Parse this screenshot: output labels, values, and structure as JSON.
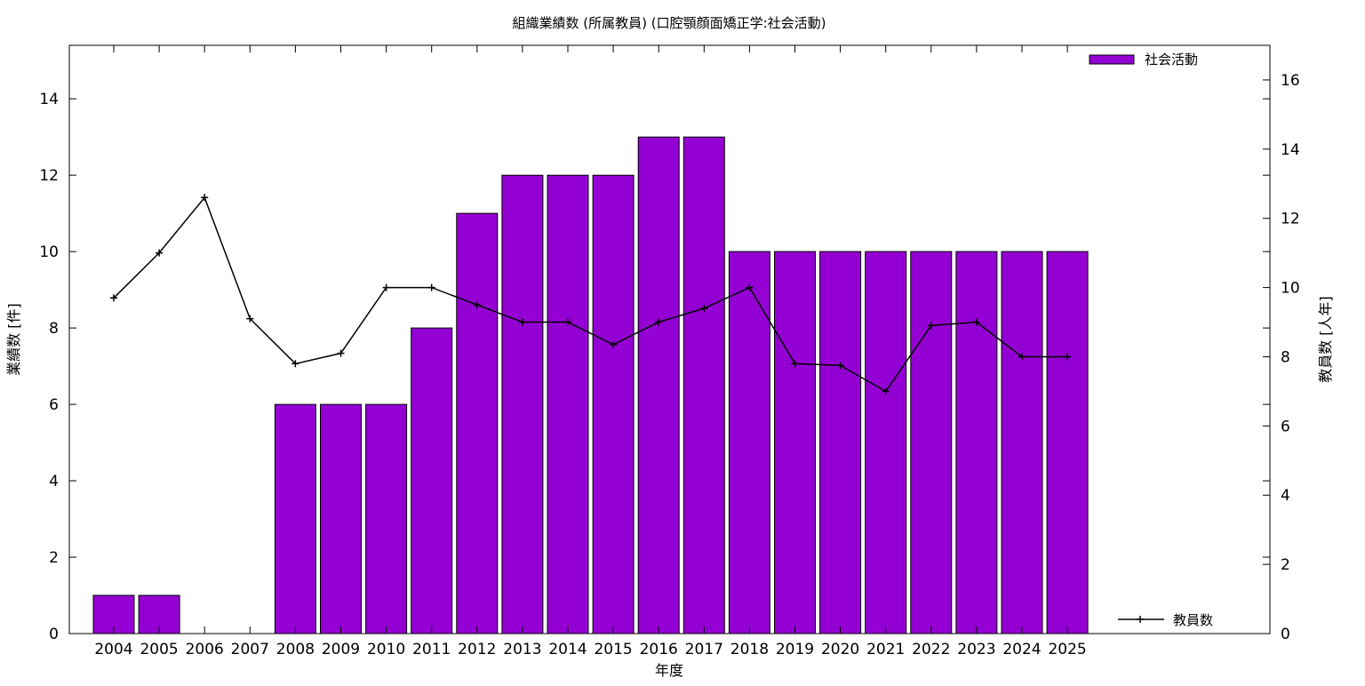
{
  "chart_data": {
    "type": "bar",
    "title": "組織業績数 (所属教員) (口腔顎顔面矯正学:社会活動)",
    "xlabel": "年度",
    "ylabel": "業績数 [件]",
    "y2label": "教員数 [人年]",
    "categories": [
      "2004",
      "2005",
      "2006",
      "2007",
      "2008",
      "2009",
      "2010",
      "2011",
      "2012",
      "2013",
      "2014",
      "2015",
      "2016",
      "2017",
      "2018",
      "2019",
      "2020",
      "2021",
      "2022",
      "2023",
      "2024",
      "2025"
    ],
    "series": [
      {
        "name": "社会活動",
        "type": "bar",
        "axis": "left",
        "color": "#9400d3",
        "values": [
          1,
          1,
          0,
          0,
          6,
          6,
          6,
          8,
          11,
          12,
          12,
          12,
          13,
          13,
          10,
          10,
          10,
          10,
          10,
          10,
          10,
          10
        ]
      },
      {
        "name": "教員数",
        "type": "line",
        "axis": "right",
        "color": "#000000",
        "values": [
          9.7,
          11.0,
          12.6,
          9.1,
          7.8,
          8.1,
          10.0,
          10.0,
          9.5,
          9.0,
          9.0,
          8.35,
          9.0,
          9.4,
          10.0,
          7.8,
          7.75,
          7.0,
          8.9,
          9.0,
          8.0,
          8.0
        ]
      }
    ],
    "ylim": [
      0,
      15.4
    ],
    "y2lim": [
      0,
      17
    ],
    "yticks": [
      0,
      2,
      4,
      6,
      8,
      10,
      12,
      14
    ],
    "y2ticks": [
      0,
      2,
      4,
      6,
      8,
      10,
      12,
      14,
      16
    ],
    "grid": false,
    "legend_bar_position": "top-right",
    "legend_line_position": "bottom-right"
  }
}
